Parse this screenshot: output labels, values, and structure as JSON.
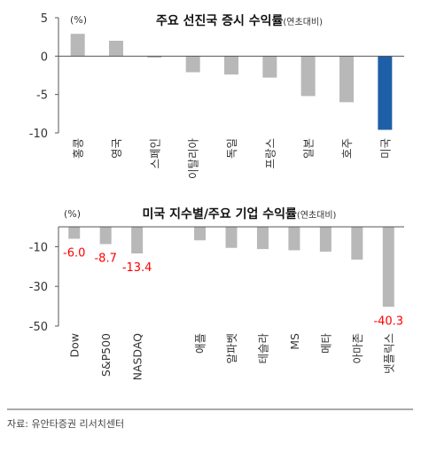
{
  "chart_data": [
    {
      "type": "bar",
      "title": "주요 선진국 증시 수익률",
      "title_suffix": "(연초대비)",
      "unit": "(%)",
      "categories": [
        "홍콩",
        "영국",
        "스페인",
        "이탈리아",
        "독일",
        "프랑스",
        "일본",
        "호주",
        "미국"
      ],
      "values": [
        2.9,
        2.0,
        -0.2,
        -2.1,
        -2.4,
        -2.8,
        -5.2,
        -6.0,
        -9.6
      ],
      "highlight_index": 8,
      "ylim": [
        -10,
        5
      ],
      "yticks": [
        5,
        0,
        -5,
        -10
      ],
      "colors": {
        "default": "#b8b8b8",
        "highlight": "#1f5fa8"
      },
      "grid": false
    },
    {
      "type": "bar",
      "title": "미국 지수별/주요 기업 수익률",
      "title_suffix": "(연초대비)",
      "unit": "(%)",
      "categories": [
        "Dow",
        "S&P500",
        "NASDAQ",
        "",
        "애플",
        "알파벳",
        "테슬라",
        "MS",
        "메타",
        "아마존",
        "넷플릭스"
      ],
      "values": [
        -6.0,
        -8.7,
        -13.4,
        null,
        -6.8,
        -10.6,
        -11.2,
        -11.8,
        -12.5,
        -16.5,
        -40.3
      ],
      "data_labels": [
        "-6.0",
        "-8.7",
        "-13.4",
        "",
        "",
        "",
        "",
        "",
        "",
        "",
        "-40.3"
      ],
      "ylim": [
        -50,
        0
      ],
      "yticks": [
        -10,
        -30,
        -50
      ],
      "colors": {
        "default": "#b8b8b8"
      },
      "grid": false
    }
  ],
  "source": "자료: 유안타증권 리서치센터"
}
